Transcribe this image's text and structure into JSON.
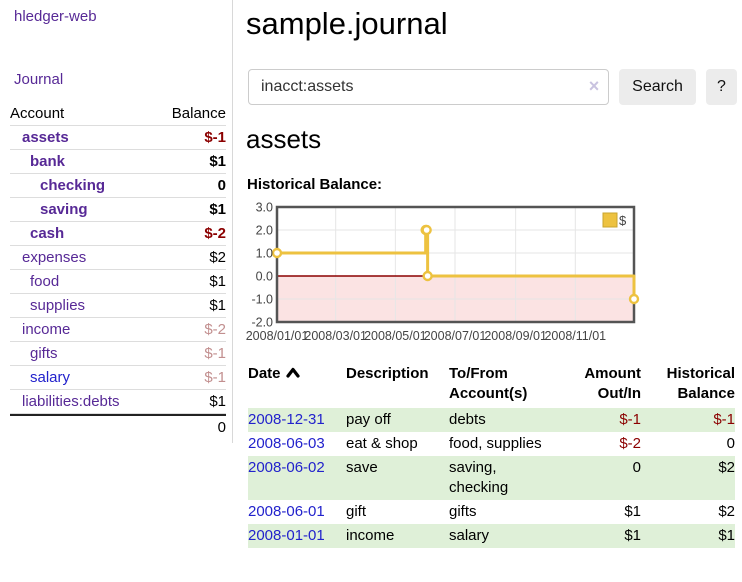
{
  "app": {
    "title": "hledger-web",
    "nav_journal": "Journal"
  },
  "sidebar": {
    "accounts_header": {
      "account": "Account",
      "balance": "Balance"
    },
    "accounts": [
      {
        "name": "assets",
        "balance": "$-1",
        "depth": 1,
        "bold": true,
        "bal_style": "neg",
        "link": "purple"
      },
      {
        "name": "bank",
        "balance": "$1",
        "depth": 2,
        "bold": true,
        "bal_style": "",
        "link": "purple"
      },
      {
        "name": "checking",
        "balance": "0",
        "depth": 3,
        "bold": true,
        "bal_style": "",
        "link": "purple"
      },
      {
        "name": "saving",
        "balance": "$1",
        "depth": 3,
        "bold": true,
        "bal_style": "",
        "link": "purple"
      },
      {
        "name": "cash",
        "balance": "$-2",
        "depth": 2,
        "bold": true,
        "bal_style": "neg",
        "link": "purple"
      },
      {
        "name": "expenses",
        "balance": "$2",
        "depth": 1,
        "bold": false,
        "bal_style": "",
        "link": "purple"
      },
      {
        "name": "food",
        "balance": "$1",
        "depth": 2,
        "bold": false,
        "bal_style": "",
        "link": "purple"
      },
      {
        "name": "supplies",
        "balance": "$1",
        "depth": 2,
        "bold": false,
        "bal_style": "",
        "link": "purple"
      },
      {
        "name": "income",
        "balance": "$-2",
        "depth": 1,
        "bold": false,
        "bal_style": "negfade",
        "link": "purple"
      },
      {
        "name": "gifts",
        "balance": "$-1",
        "depth": 2,
        "bold": false,
        "bal_style": "negfade",
        "link": "purple"
      },
      {
        "name": "salary",
        "balance": "$-1",
        "depth": 2,
        "bold": false,
        "bal_style": "negfade",
        "link": "blue"
      },
      {
        "name": "liabilities:debts",
        "balance": "$1",
        "depth": 1,
        "bold": false,
        "bal_style": "",
        "link": "purple"
      }
    ],
    "total": "0"
  },
  "header": {
    "title": "sample.journal"
  },
  "search": {
    "value": "inacct:assets",
    "clear_icon": "×",
    "button": "Search",
    "help_button": "?"
  },
  "section": {
    "heading": "assets",
    "chart_title": "Historical Balance:"
  },
  "chart_data": {
    "type": "line",
    "style": "step",
    "title": "Historical Balance:",
    "legend": "$",
    "legend_position": "top-right",
    "series": [
      {
        "name": "$",
        "color": "#edc240",
        "points": [
          [
            "2008-01-01",
            1
          ],
          [
            "2008-06-01",
            2
          ],
          [
            "2008-06-02",
            2
          ],
          [
            "2008-06-03",
            0
          ],
          [
            "2008-12-31",
            -1
          ]
        ]
      }
    ],
    "xlim": [
      "2008-01-01",
      "2008-12-31"
    ],
    "ylim": [
      -2,
      3
    ],
    "x_ticks": [
      "2008/01/01",
      "2008/03/01",
      "2008/05/01",
      "2008/07/01",
      "2008/09/01",
      "2008/11/01"
    ],
    "y_ticks": [
      "3.0",
      "2.0",
      "1.0",
      "0.0",
      "-1.0",
      "-2.0"
    ],
    "grid": true,
    "negative_region_color": "#fbe3e3",
    "zero_line_color": "#8b0000",
    "grid_color": "#e6e6e6",
    "border_color": "#545454"
  },
  "register": {
    "columns": [
      {
        "label": "Date",
        "align": "left",
        "sortable": true
      },
      {
        "label": "Description",
        "align": "left"
      },
      {
        "label": "To/From Account(s)",
        "align": "left"
      },
      {
        "label": "Amount Out/In",
        "align": "right"
      },
      {
        "label": "Historical Balance",
        "align": "right"
      }
    ],
    "rows": [
      {
        "date": "2008-12-31",
        "description": "pay off",
        "accounts": "debts",
        "amount": "$-1",
        "amount_neg": true,
        "balance": "$-1",
        "balance_neg": true,
        "shaded": true
      },
      {
        "date": "2008-06-03",
        "description": "eat & shop",
        "accounts": "food, supplies",
        "amount": "$-2",
        "amount_neg": true,
        "balance": "0",
        "balance_neg": false,
        "shaded": false
      },
      {
        "date": "2008-06-02",
        "description": "save",
        "accounts": "saving,\nchecking",
        "amount": "0",
        "amount_neg": false,
        "balance": "$2",
        "balance_neg": false,
        "shaded": true
      },
      {
        "date": "2008-06-01",
        "description": "gift",
        "accounts": "gifts",
        "amount": "$1",
        "amount_neg": false,
        "balance": "$2",
        "balance_neg": false,
        "shaded": false
      },
      {
        "date": "2008-01-01",
        "description": "income",
        "accounts": "salary",
        "amount": "$1",
        "amount_neg": false,
        "balance": "$1",
        "balance_neg": false,
        "shaded": true
      }
    ]
  }
}
